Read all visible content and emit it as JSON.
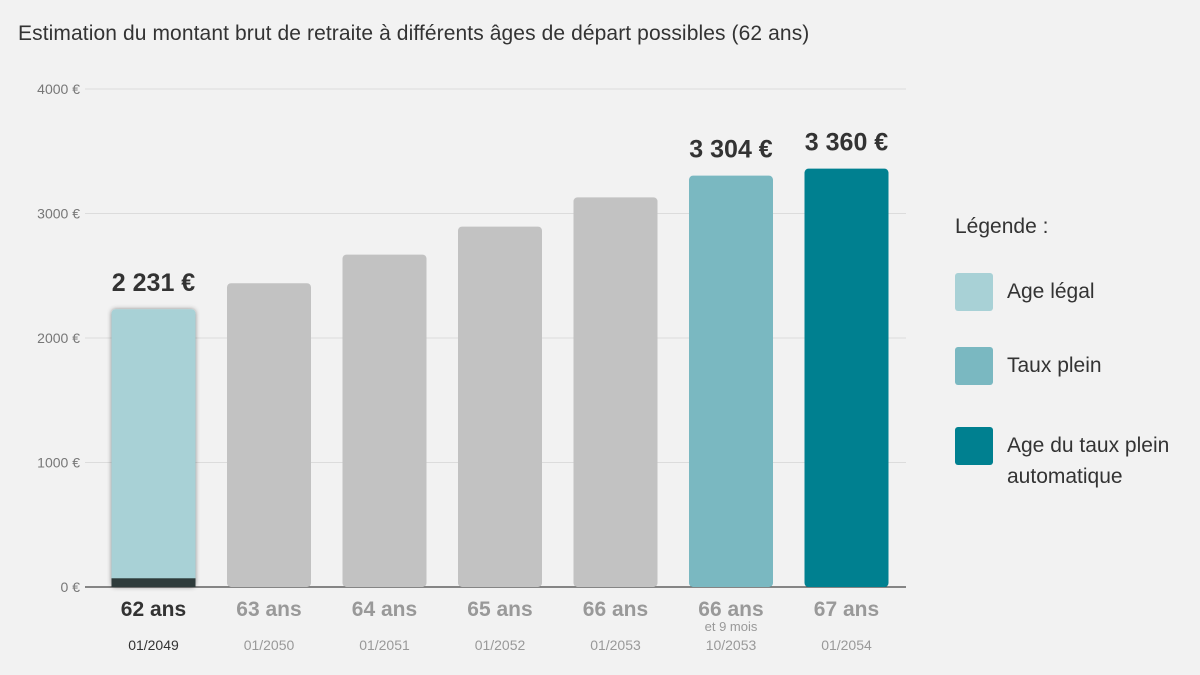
{
  "title": "Estimation du montant brut de retraite à différents âges de départ possibles (62 ans)",
  "legend": {
    "title": "Légende :",
    "items": [
      {
        "label": "Age légal",
        "color": "#a8d1d6"
      },
      {
        "label": "Taux plein",
        "color": "#7ab8c1"
      },
      {
        "label": "Age du taux plein automatique",
        "color": "#008090"
      }
    ]
  },
  "chart_data": {
    "type": "bar",
    "ylim": [
      0,
      4000
    ],
    "yticks": [
      {
        "value": 0,
        "label": "0 €"
      },
      {
        "value": 1000,
        "label": "1000 €"
      },
      {
        "value": 2000,
        "label": "2000 €"
      },
      {
        "value": 3000,
        "label": "3000 €"
      },
      {
        "value": 4000,
        "label": "4000 €"
      }
    ],
    "grid": true,
    "legend_position": "right",
    "categories": [
      {
        "age": "62 ans",
        "extra": "",
        "date": "01/2049",
        "value": 2231,
        "value_label": "2 231 €",
        "color": "#a8d1d6",
        "selected": true
      },
      {
        "age": "63 ans",
        "extra": "",
        "date": "01/2050",
        "value": 2440,
        "value_label": "",
        "color": "#c2c2c2",
        "selected": false
      },
      {
        "age": "64 ans",
        "extra": "",
        "date": "01/2051",
        "value": 2670,
        "value_label": "",
        "color": "#c2c2c2",
        "selected": false
      },
      {
        "age": "65 ans",
        "extra": "",
        "date": "01/2052",
        "value": 2895,
        "value_label": "",
        "color": "#c2c2c2",
        "selected": false
      },
      {
        "age": "66 ans",
        "extra": "",
        "date": "01/2053",
        "value": 3130,
        "value_label": "",
        "color": "#c2c2c2",
        "selected": false
      },
      {
        "age": "66 ans",
        "extra": "et 9 mois",
        "date": "10/2053",
        "value": 3304,
        "value_label": "3 304 €",
        "color": "#7ab8c1",
        "selected": false
      },
      {
        "age": "67 ans",
        "extra": "",
        "date": "01/2054",
        "value": 3360,
        "value_label": "3 360 €",
        "color": "#008090",
        "selected": false
      }
    ],
    "selected_base_color": "#2e3b3b",
    "selected_base_value": 70,
    "axis_label_color": "#999999",
    "selected_label_color": "#333333"
  }
}
